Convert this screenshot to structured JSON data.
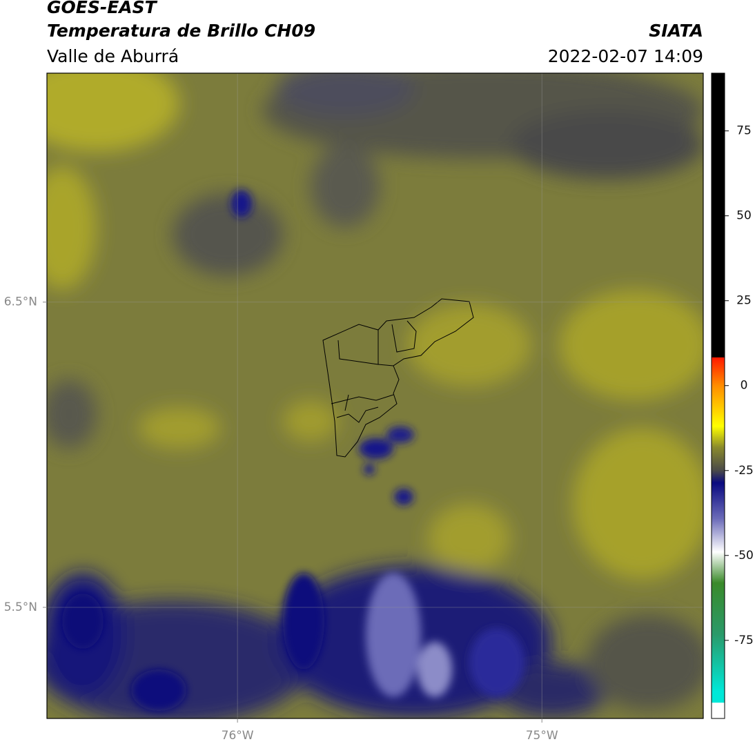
{
  "title": "GOES-EAST",
  "subtitle": "Temperatura de Brillo CH09",
  "region": "Valle de Aburrá",
  "source": "SIATA",
  "timestamp": "2022-02-07 14:09",
  "map": {
    "xlim": [
      -76.626,
      -74.47
    ],
    "ylim": [
      5.136,
      7.25
    ],
    "xticks": [
      {
        "value": -76,
        "label": "76°W"
      },
      {
        "value": -75,
        "label": "75°W"
      }
    ],
    "yticks": [
      {
        "value": 6.5,
        "label": "6.5°N"
      },
      {
        "value": 5.5,
        "label": "5.5°N"
      }
    ],
    "grid": true
  },
  "colorbar": {
    "lim": [
      -98,
      92
    ],
    "ticks": [
      75,
      50,
      25,
      0,
      -25,
      -50,
      -75
    ]
  }
}
